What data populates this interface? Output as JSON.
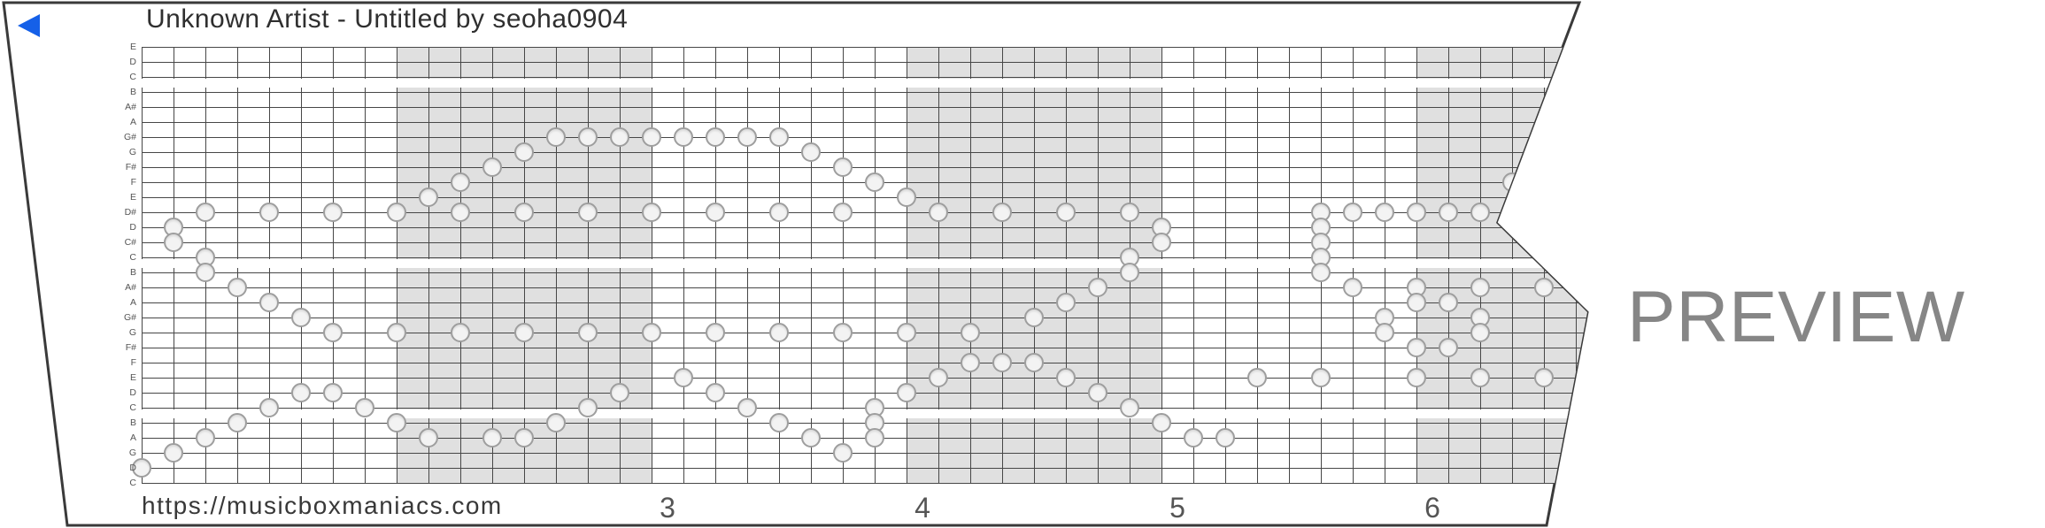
{
  "header": {
    "title": "Unknown Artist - Untitled by seoha0904",
    "play_icon": "play-triangle-left"
  },
  "watermark": {
    "text": "PREVIEW"
  },
  "footer": {
    "url": "https://musicboxmaniacs.com",
    "measure_numbers": [
      {
        "label": "3",
        "measure": 3
      },
      {
        "label": "4",
        "measure": 4
      },
      {
        "label": "5",
        "measure": 5
      },
      {
        "label": "6",
        "measure": 6
      }
    ]
  },
  "grid": {
    "row_labels": [
      "E",
      "D",
      "C",
      "B",
      "A#",
      "A",
      "G#",
      "G",
      "F#",
      "F",
      "E",
      "D#",
      "D",
      "C#",
      "C",
      "B",
      "A#",
      "A",
      "G#",
      "G",
      "F#",
      "F",
      "E",
      "D",
      "C",
      "B",
      "A",
      "G",
      "D",
      "C"
    ],
    "beats_per_measure": 8,
    "shaded_measures": [
      2,
      4,
      6
    ],
    "octave_highlight_rows": [
      2,
      14,
      24
    ],
    "notes": [
      [
        0,
        28
      ],
      [
        1,
        12
      ],
      [
        1,
        13
      ],
      [
        1,
        27
      ],
      [
        2,
        11
      ],
      [
        2,
        14
      ],
      [
        2,
        15
      ],
      [
        2,
        26
      ],
      [
        3,
        16
      ],
      [
        3,
        25
      ],
      [
        4,
        11
      ],
      [
        4,
        17
      ],
      [
        4,
        24
      ],
      [
        5,
        18
      ],
      [
        5,
        23
      ],
      [
        6,
        11
      ],
      [
        6,
        19
      ],
      [
        6,
        23
      ],
      [
        7,
        24
      ],
      [
        8,
        11
      ],
      [
        8,
        19
      ],
      [
        8,
        25
      ],
      [
        9,
        10
      ],
      [
        9,
        26
      ],
      [
        10,
        9
      ],
      [
        10,
        11
      ],
      [
        10,
        19
      ],
      [
        11,
        8
      ],
      [
        11,
        26
      ],
      [
        12,
        7
      ],
      [
        12,
        11
      ],
      [
        12,
        19
      ],
      [
        12,
        26
      ],
      [
        13,
        6
      ],
      [
        13,
        25
      ],
      [
        14,
        6
      ],
      [
        14,
        11
      ],
      [
        14,
        19
      ],
      [
        14,
        24
      ],
      [
        15,
        6
      ],
      [
        15,
        23
      ],
      [
        16,
        6
      ],
      [
        16,
        11
      ],
      [
        16,
        19
      ],
      [
        17,
        6
      ],
      [
        17,
        22
      ],
      [
        18,
        6
      ],
      [
        18,
        11
      ],
      [
        18,
        19
      ],
      [
        18,
        23
      ],
      [
        19,
        6
      ],
      [
        19,
        24
      ],
      [
        20,
        6
      ],
      [
        20,
        11
      ],
      [
        20,
        19
      ],
      [
        20,
        25
      ],
      [
        21,
        7
      ],
      [
        21,
        26
      ],
      [
        22,
        8
      ],
      [
        22,
        11
      ],
      [
        22,
        19
      ],
      [
        22,
        27
      ],
      [
        23,
        9
      ],
      [
        23,
        24
      ],
      [
        23,
        25
      ],
      [
        23,
        26
      ],
      [
        24,
        10
      ],
      [
        24,
        19
      ],
      [
        24,
        23
      ],
      [
        25,
        11
      ],
      [
        25,
        22
      ],
      [
        26,
        19
      ],
      [
        26,
        21
      ],
      [
        27,
        11
      ],
      [
        27,
        21
      ],
      [
        28,
        18
      ],
      [
        28,
        21
      ],
      [
        29,
        11
      ],
      [
        29,
        17
      ],
      [
        29,
        22
      ],
      [
        30,
        16
      ],
      [
        30,
        23
      ],
      [
        31,
        11
      ],
      [
        31,
        14
      ],
      [
        31,
        15
      ],
      [
        31,
        24
      ],
      [
        32,
        12
      ],
      [
        32,
        13
      ],
      [
        32,
        25
      ],
      [
        33,
        26
      ],
      [
        34,
        26
      ],
      [
        35,
        22
      ],
      [
        37,
        11
      ],
      [
        37,
        12
      ],
      [
        37,
        13
      ],
      [
        37,
        14
      ],
      [
        37,
        15
      ],
      [
        37,
        22
      ],
      [
        38,
        11
      ],
      [
        38,
        16
      ],
      [
        39,
        11
      ],
      [
        39,
        18
      ],
      [
        39,
        19
      ],
      [
        40,
        11
      ],
      [
        40,
        16
      ],
      [
        40,
        17
      ],
      [
        40,
        20
      ],
      [
        40,
        22
      ],
      [
        41,
        11
      ],
      [
        41,
        17
      ],
      [
        41,
        20
      ],
      [
        42,
        11
      ],
      [
        42,
        16
      ],
      [
        42,
        18
      ],
      [
        42,
        19
      ],
      [
        42,
        22
      ],
      [
        43,
        9
      ],
      [
        44,
        16
      ],
      [
        44,
        22
      ]
    ]
  },
  "colors": {
    "accent": "#1560e8",
    "shading": "#e0e0e0",
    "grid_line": "#474747",
    "outline": "#3a3a3a",
    "note_fill": "#f3f3f3",
    "note_border": "#9e9e9e",
    "text_dark": "#2f2f2f",
    "text_mid": "#555555",
    "watermark": "#868686"
  }
}
